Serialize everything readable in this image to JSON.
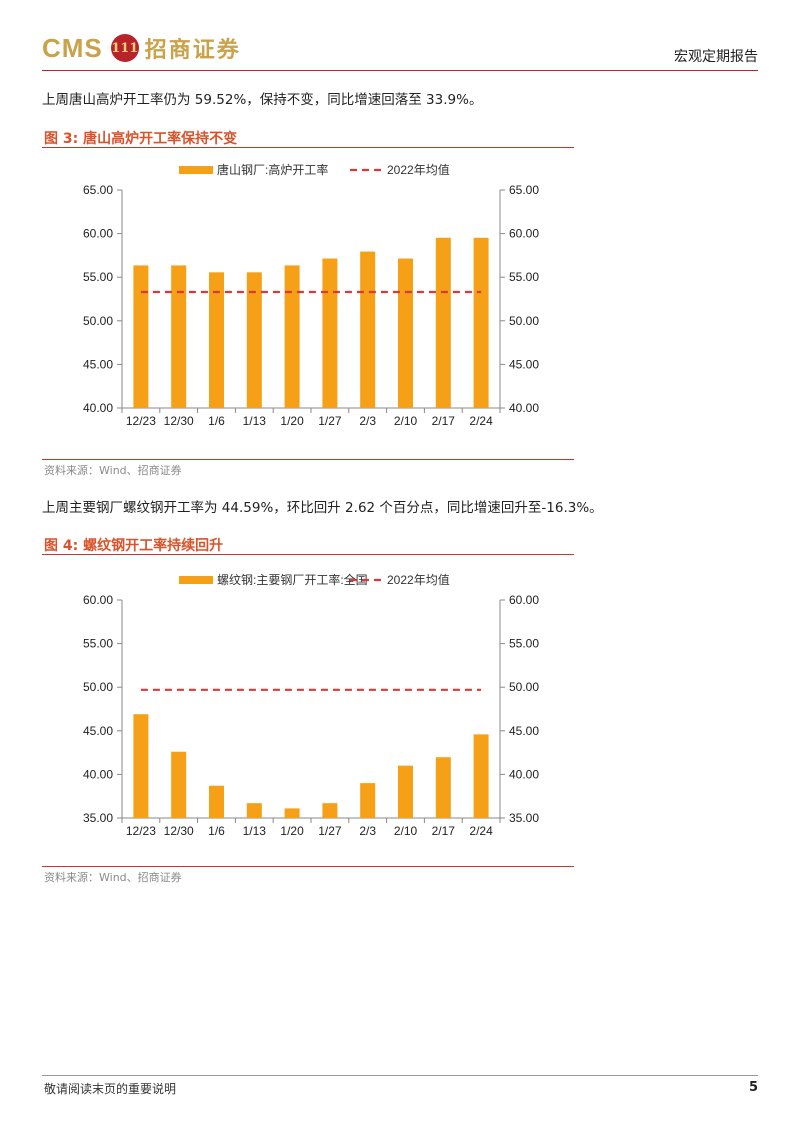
{
  "header": {
    "logo_text": "CMS",
    "logo_emblem": "111",
    "logo_cn": "招商证券",
    "title": "宏观定期报告"
  },
  "paragraphs": [
    "上周唐山高炉开工率仍为 59.52%，保持不变，同比增速回落至 33.9%。",
    "上周主要钢厂螺纹钢开工率为 44.59%，环比回升 2.62 个百分点，同比增速回升至-16.3%。"
  ],
  "figures": [
    {
      "title": "图 3:  唐山高炉开工率保持不变",
      "source": "资料来源：Wind、招商证券"
    },
    {
      "title": "图 4:  螺纹钢开工率持续回升",
      "source": "资料来源：Wind、招商证券"
    }
  ],
  "chart_data": [
    {
      "type": "bar",
      "categories": [
        "12/23",
        "12/30",
        "1/6",
        "1/13",
        "1/20",
        "1/27",
        "2/3",
        "2/10",
        "2/17",
        "2/24"
      ],
      "series": [
        {
          "name": "唐山钢厂:高炉开工率",
          "values": [
            56.35,
            56.35,
            55.56,
            55.56,
            56.35,
            57.14,
            57.94,
            57.14,
            59.52,
            59.52
          ],
          "color": "#f5a016"
        },
        {
          "name": "2022年均值",
          "values": [
            53.3,
            53.3,
            53.3,
            53.3,
            53.3,
            53.3,
            53.3,
            53.3,
            53.3,
            53.3
          ],
          "color": "#d83a3a",
          "style": "dashed-line"
        }
      ],
      "ylim": [
        40,
        65
      ],
      "yticks": [
        "65.00",
        "60.00",
        "55.00",
        "50.00",
        "45.00",
        "40.00"
      ],
      "tick_values": [
        65,
        60,
        55,
        50,
        45,
        40
      ],
      "legend": "top"
    },
    {
      "type": "bar",
      "categories": [
        "12/23",
        "12/30",
        "1/6",
        "1/13",
        "1/20",
        "1/27",
        "2/3",
        "2/10",
        "2/17",
        "2/24"
      ],
      "series": [
        {
          "name": "螺纹钢:主要钢厂开工率:全国",
          "values": [
            46.9,
            42.6,
            38.7,
            36.7,
            36.1,
            36.7,
            39.0,
            41.0,
            41.97,
            44.59
          ],
          "color": "#f5a016"
        },
        {
          "name": "2022年均值",
          "values": [
            49.7,
            49.7,
            49.7,
            49.7,
            49.7,
            49.7,
            49.7,
            49.7,
            49.7,
            49.7
          ],
          "color": "#d83a3a",
          "style": "dashed-line"
        }
      ],
      "ylim": [
        35,
        60
      ],
      "yticks": [
        "60.00",
        "55.00",
        "50.00",
        "45.00",
        "40.00",
        "35.00"
      ],
      "tick_values": [
        60,
        55,
        50,
        45,
        40,
        35
      ],
      "legend": "top"
    }
  ],
  "footer": {
    "disclaimer": "敬请阅读末页的重要说明",
    "page": "5"
  }
}
